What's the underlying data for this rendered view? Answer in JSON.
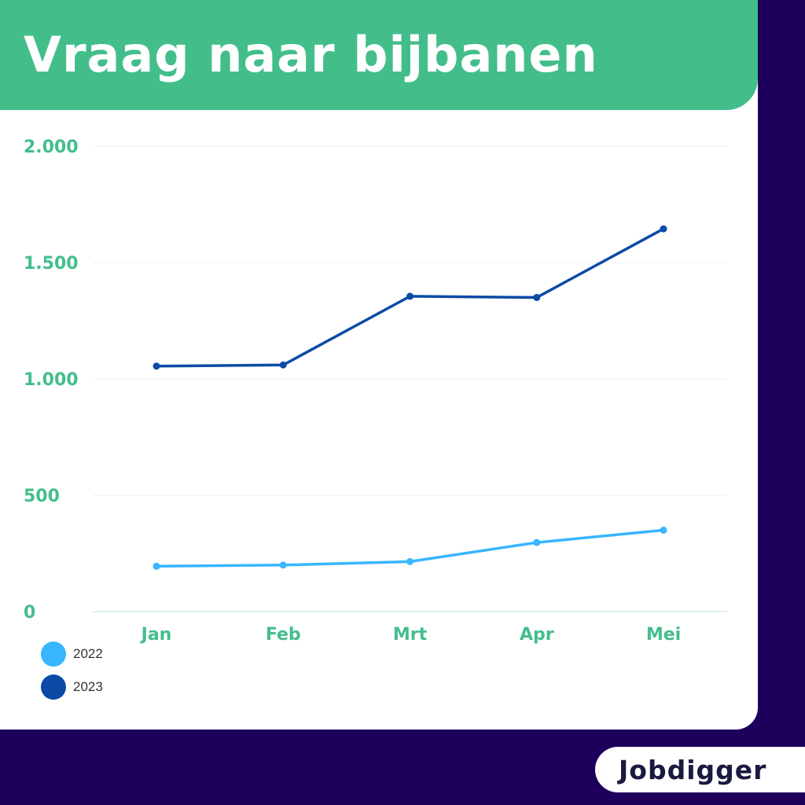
{
  "title": "Vraag naar bijbanen",
  "logo": "Jobdigger",
  "colors": {
    "header": "#43be8b",
    "background": "#1e005c",
    "axis_text": "#43be8b",
    "series_2022": "#38b6ff",
    "series_2023": "#0c4aa6"
  },
  "chart_data": {
    "type": "line",
    "categories": [
      "Jan",
      "Feb",
      "Mrt",
      "Apr",
      "Mei"
    ],
    "series": [
      {
        "name": "2022",
        "values": [
          195,
          200,
          215,
          297,
          350
        ],
        "color": "#38b6ff"
      },
      {
        "name": "2023",
        "values": [
          1055,
          1060,
          1355,
          1350,
          1645
        ],
        "color": "#0c4aa6"
      }
    ],
    "ylim": [
      0,
      2000
    ],
    "yticks": [
      0,
      500,
      1000,
      1500,
      2000
    ],
    "ytick_labels": [
      "0",
      "500",
      "1.000",
      "1.500",
      "2.000"
    ],
    "grid": true,
    "legend_position": "bottom-left"
  }
}
